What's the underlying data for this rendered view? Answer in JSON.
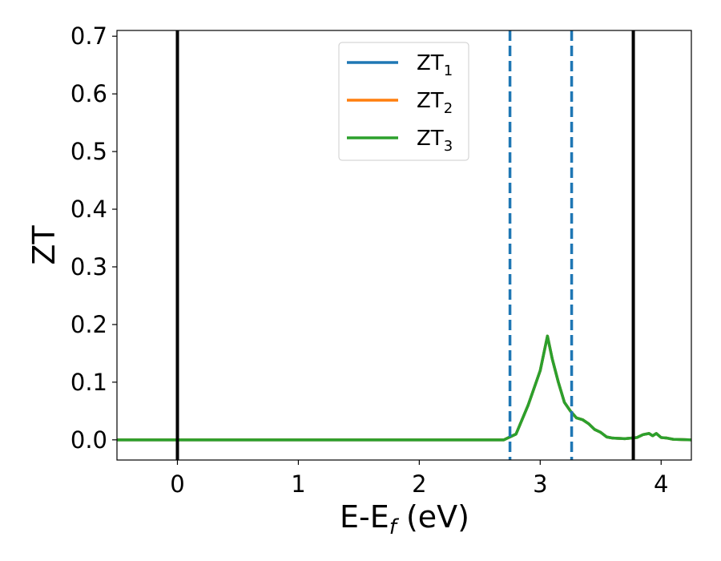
{
  "chart_data": {
    "type": "line",
    "title": "",
    "xlabel": "E-E_f (eV)",
    "xlabel_parts": {
      "main": "E-E",
      "sub": "f",
      "rest": " (eV)"
    },
    "ylabel": "ZT",
    "xlim": [
      -0.5,
      4.25
    ],
    "ylim": [
      -0.035,
      0.71
    ],
    "xticks": [
      0,
      1,
      2,
      3,
      4
    ],
    "xtick_labels": [
      "0",
      "1",
      "2",
      "3",
      "4"
    ],
    "yticks": [
      0.0,
      0.1,
      0.2,
      0.3,
      0.4,
      0.5,
      0.6,
      0.7
    ],
    "ytick_labels": [
      "0.0",
      "0.1",
      "0.2",
      "0.3",
      "0.4",
      "0.5",
      "0.6",
      "0.7"
    ],
    "grid": false,
    "legend_position": "top-center",
    "series": [
      {
        "name": "ZT1",
        "label_main": "ZT",
        "label_sub": "1",
        "color": "#1f77b4",
        "x": [
          -0.5,
          2.7,
          2.8,
          2.9,
          3.0,
          3.06,
          3.1,
          3.15,
          3.2,
          3.25,
          3.3,
          3.35,
          3.4,
          3.45,
          3.5,
          3.55,
          3.6,
          3.7,
          3.8,
          3.85,
          3.9,
          3.93,
          3.96,
          4.0,
          4.05,
          4.1,
          4.25
        ],
        "y": [
          0,
          0,
          0.01,
          0.06,
          0.12,
          0.18,
          0.14,
          0.1,
          0.065,
          0.05,
          0.038,
          0.035,
          0.028,
          0.018,
          0.013,
          0.005,
          0.003,
          0.002,
          0.004,
          0.009,
          0.011,
          0.007,
          0.011,
          0.004,
          0.003,
          0.001,
          0.0
        ]
      },
      {
        "name": "ZT2",
        "label_main": "ZT",
        "label_sub": "2",
        "color": "#ff7f0e",
        "x": [
          -0.5,
          2.7,
          2.8,
          2.9,
          3.0,
          3.06,
          3.1,
          3.15,
          3.2,
          3.25,
          3.3,
          3.35,
          3.4,
          3.45,
          3.5,
          3.55,
          3.6,
          3.7,
          3.8,
          3.85,
          3.9,
          3.93,
          3.96,
          4.0,
          4.05,
          4.1,
          4.25
        ],
        "y": [
          0,
          0,
          0.01,
          0.06,
          0.12,
          0.18,
          0.14,
          0.1,
          0.065,
          0.05,
          0.038,
          0.035,
          0.028,
          0.018,
          0.013,
          0.005,
          0.003,
          0.002,
          0.004,
          0.009,
          0.011,
          0.007,
          0.011,
          0.004,
          0.003,
          0.001,
          0.0
        ]
      },
      {
        "name": "ZT3",
        "label_main": "ZT",
        "label_sub": "3",
        "color": "#2ca02c",
        "x": [
          -0.5,
          2.7,
          2.8,
          2.9,
          3.0,
          3.06,
          3.1,
          3.15,
          3.2,
          3.25,
          3.3,
          3.35,
          3.4,
          3.45,
          3.5,
          3.55,
          3.6,
          3.7,
          3.8,
          3.85,
          3.9,
          3.93,
          3.96,
          4.0,
          4.05,
          4.1,
          4.25
        ],
        "y": [
          0,
          0,
          0.01,
          0.06,
          0.12,
          0.18,
          0.14,
          0.1,
          0.065,
          0.05,
          0.038,
          0.035,
          0.028,
          0.018,
          0.013,
          0.005,
          0.003,
          0.002,
          0.004,
          0.009,
          0.011,
          0.007,
          0.011,
          0.004,
          0.003,
          0.001,
          0.0
        ]
      }
    ],
    "vertical_lines": [
      {
        "name": "solid-line-1",
        "x": 0.0,
        "color": "#000000",
        "style": "solid"
      },
      {
        "name": "solid-line-2",
        "x": 3.77,
        "color": "#000000",
        "style": "solid"
      },
      {
        "name": "dashed-line-1",
        "x": 2.75,
        "color": "#1f77b4",
        "style": "dashed"
      },
      {
        "name": "dashed-line-2",
        "x": 3.26,
        "color": "#1f77b4",
        "style": "dashed"
      }
    ]
  }
}
